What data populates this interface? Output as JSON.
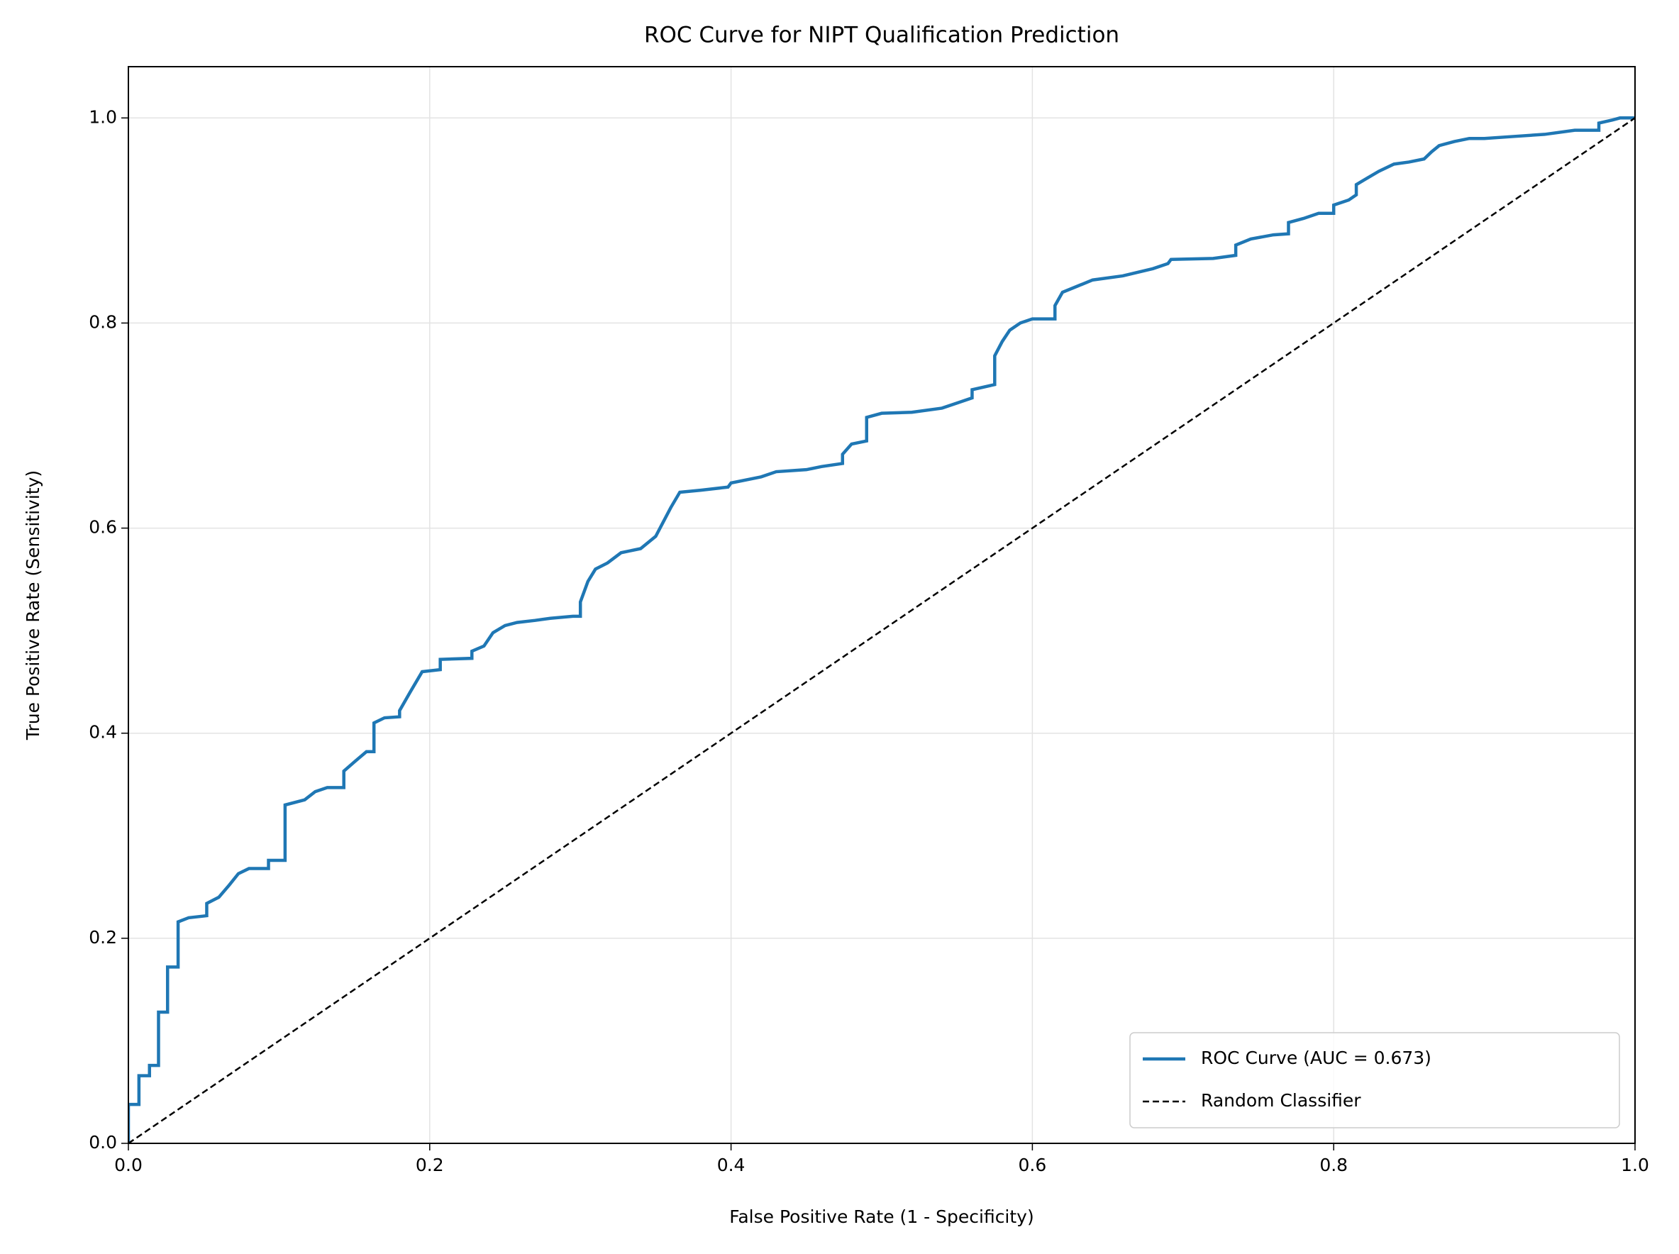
{
  "chart_data": {
    "type": "line",
    "title": "ROC Curve for NIPT Qualification Prediction",
    "xlabel": "False Positive Rate (1 - Specificity)",
    "ylabel": "True Positive Rate (Sensitivity)",
    "xlim": [
      0,
      1
    ],
    "ylim": [
      0,
      1.05
    ],
    "xticks": [
      {
        "value": 0,
        "label": "0.0"
      },
      0.2,
      0.4,
      0.6,
      0.8,
      {
        "value": 1,
        "label": "1.0"
      }
    ],
    "yticks": [
      {
        "value": 0,
        "label": "0.0"
      },
      0.2,
      0.4,
      0.6,
      0.8,
      {
        "value": 1,
        "label": "1.0"
      }
    ],
    "grid": true,
    "legend": "lower right",
    "series": [
      {
        "name": "ROC Curve (AUC = 0.673)",
        "color": "#1f77b4",
        "style": "solid",
        "x": [
          0,
          0,
          0.007,
          0.007,
          0.014,
          0.014,
          0.02,
          0.02,
          0.026,
          0.026,
          0.033,
          0.033,
          0.04,
          0.052,
          0.052,
          0.06,
          0.067,
          0.073,
          0.08,
          0.093,
          0.093,
          0.104,
          0.104,
          0.117,
          0.124,
          0.132,
          0.143,
          0.143,
          0.15,
          0.158,
          0.163,
          0.163,
          0.17,
          0.18,
          0.18,
          0.187,
          0.195,
          0.207,
          0.207,
          0.228,
          0.228,
          0.236,
          0.242,
          0.25,
          0.258,
          0.27,
          0.28,
          0.295,
          0.3,
          0.3,
          0.305,
          0.31,
          0.318,
          0.327,
          0.34,
          0.35,
          0.355,
          0.36,
          0.366,
          0.38,
          0.398,
          0.4,
          0.42,
          0.43,
          0.45,
          0.46,
          0.474,
          0.474,
          0.48,
          0.49,
          0.49,
          0.5,
          0.52,
          0.54,
          0.55,
          0.56,
          0.56,
          0.575,
          0.575,
          0.58,
          0.585,
          0.592,
          0.6,
          0.615,
          0.615,
          0.62,
          0.63,
          0.64,
          0.66,
          0.68,
          0.69,
          0.692,
          0.72,
          0.735,
          0.735,
          0.745,
          0.76,
          0.77,
          0.77,
          0.78,
          0.79,
          0.8,
          0.8,
          0.81,
          0.815,
          0.815,
          0.823,
          0.83,
          0.84,
          0.85,
          0.86,
          0.865,
          0.87,
          0.88,
          0.89,
          0.9,
          0.92,
          0.94,
          0.96,
          0.976,
          0.976,
          0.985,
          0.99,
          1.0
        ],
        "values": [
          0,
          0.038,
          0.038,
          0.066,
          0.066,
          0.076,
          0.076,
          0.128,
          0.128,
          0.172,
          0.172,
          0.216,
          0.22,
          0.222,
          0.234,
          0.24,
          0.252,
          0.263,
          0.268,
          0.268,
          0.276,
          0.276,
          0.33,
          0.335,
          0.343,
          0.347,
          0.347,
          0.363,
          0.372,
          0.382,
          0.382,
          0.41,
          0.415,
          0.416,
          0.422,
          0.44,
          0.46,
          0.462,
          0.472,
          0.473,
          0.48,
          0.485,
          0.498,
          0.505,
          0.508,
          0.51,
          0.512,
          0.514,
          0.514,
          0.528,
          0.548,
          0.56,
          0.566,
          0.576,
          0.58,
          0.592,
          0.606,
          0.62,
          0.635,
          0.637,
          0.64,
          0.644,
          0.65,
          0.655,
          0.657,
          0.66,
          0.663,
          0.672,
          0.682,
          0.685,
          0.708,
          0.712,
          0.713,
          0.717,
          0.722,
          0.727,
          0.735,
          0.74,
          0.768,
          0.782,
          0.793,
          0.8,
          0.804,
          0.804,
          0.817,
          0.83,
          0.836,
          0.842,
          0.846,
          0.853,
          0.858,
          0.862,
          0.863,
          0.866,
          0.876,
          0.882,
          0.886,
          0.887,
          0.898,
          0.902,
          0.907,
          0.907,
          0.915,
          0.92,
          0.925,
          0.935,
          0.942,
          0.948,
          0.955,
          0.957,
          0.96,
          0.967,
          0.973,
          0.977,
          0.98,
          0.98,
          0.982,
          0.984,
          0.988,
          0.988,
          0.995,
          0.998,
          1.0,
          1.0
        ]
      },
      {
        "name": "Random Classifier",
        "color": "#000000",
        "style": "dashed",
        "x": [
          0,
          1
        ],
        "values": [
          0,
          1
        ]
      }
    ]
  }
}
